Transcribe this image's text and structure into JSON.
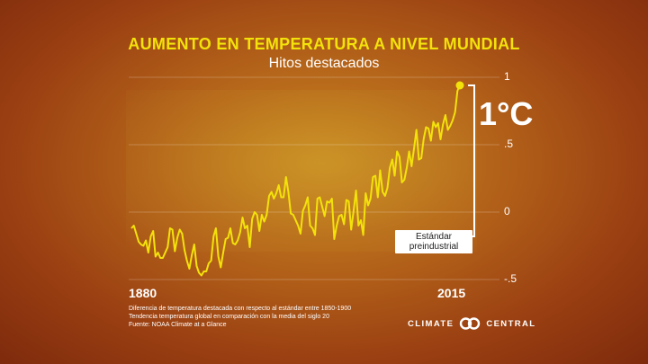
{
  "title": "AUMENTO EN TEMPERATURA A NIVEL MUNDIAL",
  "subtitle": "Hitos destacados",
  "rise_label": "1°C",
  "baseline_label_line1": "Estándar",
  "baseline_label_line2": "preindustrial",
  "notes": [
    "Diferencia de temperatura destacada con respecto al estándar entre 1850-1900",
    "Tendencia temperatura global en comparación con la media del siglo 20",
    "Fuente: NOAA Climate at a Glance"
  ],
  "brand": {
    "left": "CLIMATE",
    "right": "CENTRAL"
  },
  "colors": {
    "line": "#f3e20a",
    "title": "#f3e20a",
    "text": "#ffffff"
  },
  "chart_data": {
    "type": "line",
    "x_tick_labels": [
      "1880",
      "2015"
    ],
    "y_tick_labels": [
      "1",
      ".5",
      "0",
      "-.5"
    ],
    "ylim": [
      -0.5,
      1.0
    ],
    "xlim": [
      1880,
      2016
    ],
    "grid": true,
    "x": [
      1880,
      1881,
      1882,
      1883,
      1884,
      1885,
      1886,
      1887,
      1888,
      1889,
      1890,
      1891,
      1892,
      1893,
      1894,
      1895,
      1896,
      1897,
      1898,
      1899,
      1900,
      1901,
      1902,
      1903,
      1904,
      1905,
      1906,
      1907,
      1908,
      1909,
      1910,
      1911,
      1912,
      1913,
      1914,
      1915,
      1916,
      1917,
      1918,
      1919,
      1920,
      1921,
      1922,
      1923,
      1924,
      1925,
      1926,
      1927,
      1928,
      1929,
      1930,
      1931,
      1932,
      1933,
      1934,
      1935,
      1936,
      1937,
      1938,
      1939,
      1940,
      1941,
      1942,
      1943,
      1944,
      1945,
      1946,
      1947,
      1948,
      1949,
      1950,
      1951,
      1952,
      1953,
      1954,
      1955,
      1956,
      1957,
      1958,
      1959,
      1960,
      1961,
      1962,
      1963,
      1964,
      1965,
      1966,
      1967,
      1968,
      1969,
      1970,
      1971,
      1972,
      1973,
      1974,
      1975,
      1976,
      1977,
      1978,
      1979,
      1980,
      1981,
      1982,
      1983,
      1984,
      1985,
      1986,
      1987,
      1988,
      1989,
      1990,
      1991,
      1992,
      1993,
      1994,
      1995,
      1996,
      1997,
      1998,
      1999,
      2000,
      2001,
      2002,
      2003,
      2004,
      2005,
      2006,
      2007,
      2008,
      2009,
      2010,
      2011,
      2012,
      2013,
      2014,
      2015,
      2016
    ],
    "values": [
      -0.12,
      -0.1,
      -0.16,
      -0.22,
      -0.24,
      -0.25,
      -0.21,
      -0.3,
      -0.18,
      -0.14,
      -0.33,
      -0.3,
      -0.34,
      -0.34,
      -0.3,
      -0.26,
      -0.12,
      -0.13,
      -0.29,
      -0.19,
      -0.13,
      -0.16,
      -0.28,
      -0.36,
      -0.42,
      -0.32,
      -0.24,
      -0.4,
      -0.45,
      -0.47,
      -0.44,
      -0.44,
      -0.38,
      -0.36,
      -0.18,
      -0.12,
      -0.33,
      -0.41,
      -0.3,
      -0.2,
      -0.19,
      -0.12,
      -0.23,
      -0.24,
      -0.21,
      -0.15,
      -0.04,
      -0.12,
      -0.1,
      -0.26,
      -0.05,
      0.0,
      -0.02,
      -0.14,
      -0.02,
      -0.07,
      -0.02,
      0.12,
      0.15,
      0.1,
      0.14,
      0.2,
      0.11,
      0.11,
      0.26,
      0.15,
      -0.01,
      -0.02,
      -0.06,
      -0.1,
      -0.16,
      0.01,
      0.05,
      0.11,
      -0.1,
      -0.12,
      -0.17,
      0.1,
      0.11,
      0.04,
      -0.03,
      0.08,
      0.07,
      0.1,
      -0.2,
      -0.1,
      -0.03,
      -0.02,
      -0.09,
      0.09,
      0.08,
      -0.13,
      0.01,
      0.16,
      -0.1,
      -0.06,
      -0.17,
      0.14,
      0.05,
      0.1,
      0.26,
      0.27,
      0.11,
      0.31,
      0.15,
      0.12,
      0.18,
      0.33,
      0.39,
      0.27,
      0.45,
      0.41,
      0.22,
      0.24,
      0.33,
      0.45,
      0.34,
      0.47,
      0.61,
      0.39,
      0.4,
      0.54,
      0.63,
      0.62,
      0.53,
      0.67,
      0.63,
      0.66,
      0.54,
      0.65,
      0.72,
      0.61,
      0.64,
      0.68,
      0.74,
      0.9,
      0.94
    ]
  }
}
